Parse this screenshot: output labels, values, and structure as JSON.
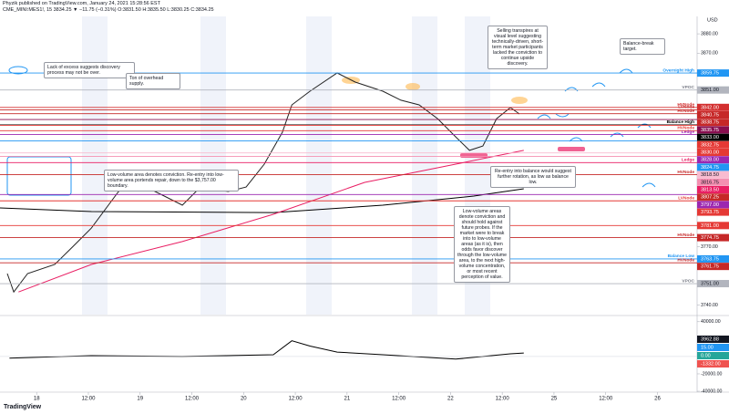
{
  "chart_data": [
    {
      "type": "line",
      "title": "Phyzik published on TradingView.com, January 24, 2021 15:28:56 EST",
      "subtitle": "CME_MINI:MES1!, 15 3834.25 ▼ −11.75 (−0.31%) O:3831.50 H:3835.50 L:3830.25 C:3834.25",
      "currency": "USD",
      "xlim": [
        -8.5,
        153.2
      ],
      "xticks": [
        {
          "value": 0,
          "label": "18"
        },
        {
          "value": 12,
          "label": "12:00"
        },
        {
          "value": 24,
          "label": "19"
        },
        {
          "value": 36,
          "label": "12:00"
        },
        {
          "value": 48,
          "label": "20"
        },
        {
          "value": 60,
          "label": "12:00"
        },
        {
          "value": 72,
          "label": "21"
        },
        {
          "value": 84,
          "label": "12:00"
        },
        {
          "value": 96,
          "label": "22"
        },
        {
          "value": 108,
          "label": "12:00"
        },
        {
          "value": 120,
          "label": "25"
        },
        {
          "value": 132,
          "label": "12:00"
        },
        {
          "value": 144,
          "label": "26"
        }
      ],
      "ylim": [
        3735,
        3889
      ],
      "yticks": [
        {
          "value": 3740,
          "label": "3740.00"
        },
        {
          "value": 3770,
          "label": "3770.00"
        },
        {
          "value": 3870,
          "label": "3870.00"
        },
        {
          "value": 3880,
          "label": "3880.00"
        }
      ],
      "series": [
        {
          "color": "#000000",
          "x": [
            -8.5,
            12.7,
            54.9,
            80.3,
            101.4,
            113.0
          ],
          "values": [
            3790.1,
            3788.2,
            3787.7,
            3791.5,
            3796.2,
            3800.0
          ]
        },
        {
          "color": "#e91e63",
          "x": [
            -4.2,
            12.7,
            33.8,
            54.9,
            76.1,
            97.2,
            113.0
          ],
          "values": [
            3746.7,
            3760.9,
            3772.7,
            3786.8,
            3803.3,
            3812.7,
            3819.8
          ]
        },
        {
          "color": "#222222",
          "x": [
            -6.8,
            -5.3,
            -2.1,
            4.2,
            8.5,
            12.7,
            19.0,
            23.2,
            29.6,
            33.8,
            38.0,
            44.4,
            48.6,
            52.8,
            57.0,
            59.2,
            63.4,
            69.7,
            73.9,
            80.3,
            84.5,
            88.7,
            93.0,
            97.2,
            100.4,
            103.5,
            106.7,
            109.9,
            112.0
          ],
          "values": [
            3756.2,
            3746.7,
            3756.2,
            3760.9,
            3770.3,
            3779.7,
            3798.6,
            3803.3,
            3796.2,
            3791.5,
            3800.9,
            3798.6,
            3800.9,
            3812.7,
            3829.2,
            3843.3,
            3850.4,
            3859.8,
            3855.1,
            3850.4,
            3845.7,
            3843.3,
            3836.2,
            3826.8,
            3819.8,
            3822.1,
            3836.2,
            3841.9,
            3838.6
          ]
        }
      ],
      "levels": [
        {
          "value": 3859.75,
          "label": "3859.75",
          "name": "Overnight High",
          "color": "#2196f3"
        },
        {
          "value": 3851,
          "label": "3851.00",
          "name": "VPOC",
          "color": "#b2b5be"
        },
        {
          "value": 3842,
          "label": "3842.00",
          "name": "HVNode",
          "color": "#d32f2f"
        },
        {
          "value": 3840.75,
          "label": "3840.75",
          "name": "LVNode",
          "color": "#c62828"
        },
        {
          "value": 3838.75,
          "label": "3838.75",
          "name": "HVNode",
          "color": "#c62828"
        },
        {
          "value": 3835.75,
          "label": "3835.75",
          "color": "#880e4f"
        },
        {
          "value": 3833,
          "label": "3833.00",
          "name": "Balance High",
          "color": "#000000"
        },
        {
          "value": 3832.75,
          "label": "3832.75",
          "color": "#e53935"
        },
        {
          "value": 3830,
          "label": "3830.00",
          "name": "HVNode",
          "color": "#e53935"
        },
        {
          "value": 3828,
          "label": "3828.00",
          "name": "Ledge",
          "color": "#9c27b0"
        },
        {
          "value": 3824.75,
          "label": "3824.75",
          "color": "#2196f3"
        },
        {
          "value": 3818.5,
          "label": "3818.50",
          "color": "#f8bbd0"
        },
        {
          "value": 3816.75,
          "label": "3816.75",
          "color": "#f48fb1"
        },
        {
          "value": 3813.5,
          "label": "3813.50",
          "name": "Ledge",
          "color": "#e91e63"
        },
        {
          "value": 3807.25,
          "label": "3807.25",
          "name": "HVNode",
          "color": "#c62828"
        },
        {
          "value": 3797,
          "label": "3797.00",
          "color": "#9c27b0"
        },
        {
          "value": 3793.75,
          "label": "3793.75",
          "name": "LVNode",
          "color": "#e53935"
        },
        {
          "value": 3781,
          "label": "3781.00",
          "color": "#e53935"
        },
        {
          "value": 3774.75,
          "label": "3774.75",
          "name": "HVNode",
          "color": "#c62828"
        },
        {
          "value": 3763.75,
          "label": "3763.75",
          "name": "Balance Low",
          "color": "#2196f3"
        },
        {
          "value": 3761.75,
          "label": "3761.75",
          "name": "HVNode",
          "color": "#c62828"
        },
        {
          "value": 3751,
          "label": "3751.00",
          "name": "VPOC",
          "color": "#b2b5be"
        }
      ],
      "annotations": [
        "Lack of excess suggests discovery process may not be over.",
        "Ton of overhead supply.",
        "Selling transpires at visual level suggesting technically-driven, short-term market participants lacked the conviction to continue upside discovery.",
        "Balance-break target.",
        "Low-volume area denotes conviction. Re-entry into low-volume area portends repair, down to the $3,757.00 boundary.",
        "Re-entry into balance would suggest further rotation, as low as balance low.",
        "Low-volume areas denote conviction and should hold against future probes. If the market were to break into to low-volume areas (as it is), then odds favor discover through the low-volume area, to the next high-volume concentration, or most recent perception of value."
      ]
    },
    {
      "type": "line",
      "ylim": [
        -41000,
        45000
      ],
      "yticks": [
        {
          "value": 40000,
          "label": "40000.00"
        },
        {
          "value": -20000,
          "label": "-20000.00"
        },
        {
          "value": -40000,
          "label": "-40000.00"
        }
      ],
      "series": [
        {
          "color": "#000000",
          "x": [
            -6.3,
            12.7,
            33.8,
            54.9,
            59.2,
            63.4,
            69.7,
            80.3,
            97.2,
            109.9,
            113.0
          ],
          "values": [
            -2000,
            1000,
            0,
            2000,
            18000,
            12000,
            5000,
            2000,
            -3000,
            3000,
            4000
          ]
        }
      ],
      "readouts": [
        {
          "value": 3962.88,
          "label": "3962.88",
          "color": "#131722"
        },
        {
          "value": 15,
          "label": "15.00",
          "color": "#2196f3"
        },
        {
          "value": 0,
          "label": "0.00",
          "color": "#26a69a"
        },
        {
          "value": -1332,
          "label": "-1332.00",
          "color": "#ef5350"
        }
      ]
    }
  ],
  "footer": "TradingView"
}
